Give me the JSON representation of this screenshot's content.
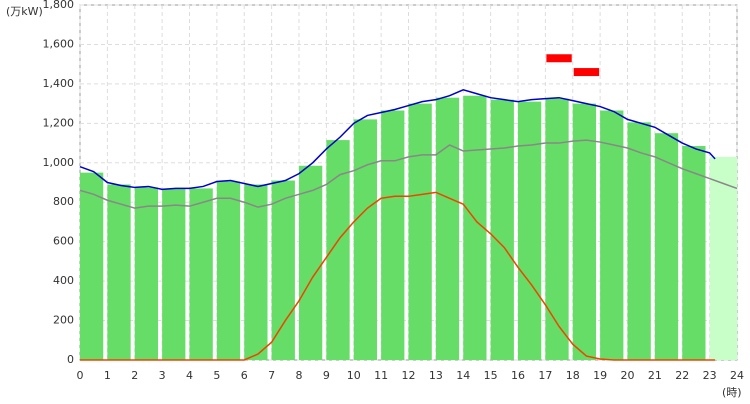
{
  "chart_data": {
    "type": "bar_line",
    "y_label": "(万kW)",
    "x_label": "(時)",
    "xlim": [
      0,
      24
    ],
    "xticks": [
      0,
      1,
      2,
      3,
      4,
      5,
      6,
      7,
      8,
      9,
      10,
      11,
      12,
      13,
      14,
      15,
      16,
      17,
      18,
      19,
      20,
      21,
      22,
      23,
      24
    ],
    "ylim": [
      0,
      1800
    ],
    "yticks": [
      0,
      200,
      400,
      600,
      800,
      {
        "value": 1000,
        "label": "1,000"
      },
      {
        "value": 1200,
        "label": "1,200"
      },
      {
        "value": 1400,
        "label": "1,400"
      },
      {
        "value": 1600,
        "label": "1,600"
      },
      {
        "value": 1800,
        "label": "1,800"
      }
    ],
    "grid": true,
    "bar_color": "#66dd66",
    "last_bar_color": "#c8ffc8",
    "categories": [
      0,
      1,
      2,
      3,
      4,
      5,
      6,
      7,
      8,
      9,
      10,
      11,
      12,
      13,
      14,
      15,
      16,
      17,
      18,
      19,
      20,
      21,
      22,
      23
    ],
    "values": [
      950,
      890,
      875,
      870,
      870,
      905,
      890,
      910,
      985,
      1115,
      1220,
      1265,
      1300,
      1330,
      1340,
      1320,
      1310,
      1325,
      1300,
      1265,
      1205,
      1150,
      1085,
      1030
    ],
    "lines": [
      {
        "color": "#888888",
        "x": [
          0,
          0.5,
          1,
          1.5,
          2,
          2.5,
          3,
          3.5,
          4,
          4.5,
          5,
          5.5,
          6,
          6.5,
          7,
          7.5,
          8,
          8.5,
          9,
          9.5,
          10,
          10.5,
          11,
          11.5,
          12,
          12.5,
          13,
          13.5,
          14,
          14.5,
          15,
          15.5,
          16,
          16.5,
          17,
          17.5,
          18,
          18.5,
          19,
          19.5,
          20,
          20.5,
          21,
          21.5,
          22,
          22.5,
          23,
          23.5,
          24
        ],
        "values": [
          860,
          840,
          810,
          790,
          770,
          780,
          780,
          785,
          780,
          800,
          820,
          820,
          800,
          775,
          790,
          820,
          840,
          860,
          890,
          940,
          960,
          990,
          1010,
          1010,
          1030,
          1040,
          1040,
          1090,
          1060,
          1065,
          1070,
          1075,
          1085,
          1090,
          1100,
          1100,
          1110,
          1115,
          1105,
          1090,
          1075,
          1050,
          1030,
          1000,
          970,
          945,
          920,
          895,
          870
        ]
      },
      {
        "color": "#ee4400",
        "x": [
          0,
          6,
          6.5,
          7,
          7.5,
          8,
          8.5,
          9,
          9.5,
          10,
          10.5,
          11,
          11.5,
          12,
          12.5,
          13,
          13.5,
          14,
          14.5,
          15,
          15.5,
          16,
          16.5,
          17,
          17.5,
          18,
          18.5,
          19,
          19.5,
          23.2
        ],
        "values": [
          0,
          0,
          30,
          90,
          200,
          300,
          420,
          520,
          620,
          700,
          770,
          820,
          830,
          830,
          840,
          850,
          820,
          790,
          700,
          640,
          570,
          470,
          380,
          280,
          170,
          80,
          20,
          5,
          0,
          0
        ]
      },
      {
        "color": "#0000cc",
        "x": [
          0,
          0.5,
          1,
          1.5,
          2,
          2.5,
          3,
          3.5,
          4,
          4.5,
          5,
          5.5,
          6,
          6.5,
          7,
          7.5,
          8,
          8.5,
          9,
          9.5,
          10,
          10.5,
          11,
          11.5,
          12,
          12.5,
          13,
          13.5,
          14,
          14.5,
          15,
          15.5,
          16,
          16.5,
          17,
          17.5,
          18,
          18.5,
          19,
          19.5,
          20,
          20.5,
          21,
          21.5,
          22,
          22.5,
          23,
          23.2
        ],
        "values": [
          980,
          955,
          900,
          885,
          875,
          880,
          865,
          870,
          870,
          880,
          905,
          910,
          895,
          880,
          895,
          910,
          945,
          1000,
          1070,
          1130,
          1200,
          1240,
          1255,
          1270,
          1290,
          1310,
          1320,
          1340,
          1370,
          1350,
          1330,
          1320,
          1310,
          1320,
          1325,
          1330,
          1315,
          1300,
          1285,
          1260,
          1220,
          1200,
          1180,
          1140,
          1100,
          1070,
          1050,
          1020
        ]
      }
    ],
    "marker_color": "#ff0000",
    "markers": [
      {
        "x": [
          17,
          18
        ],
        "value": 1530
      },
      {
        "x": [
          18,
          19
        ],
        "value": 1460
      }
    ]
  }
}
